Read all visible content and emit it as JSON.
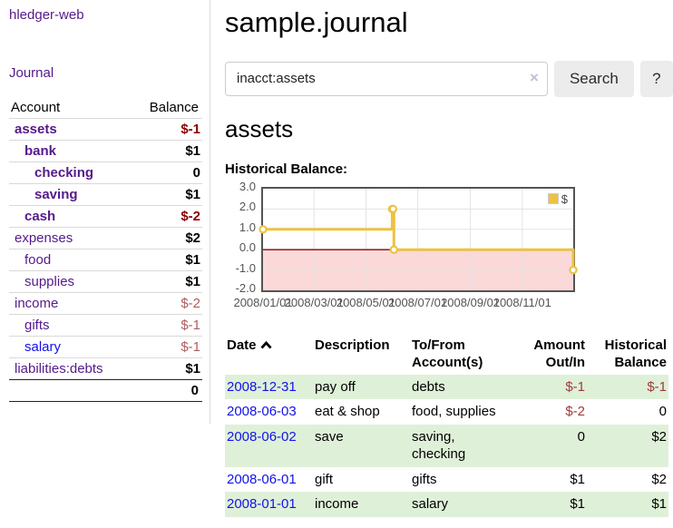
{
  "app": {
    "brand": "hledger-web"
  },
  "nav": {
    "journal": "Journal"
  },
  "sidebar": {
    "headers": {
      "account": "Account",
      "balance": "Balance"
    },
    "accounts": [
      {
        "name": "assets",
        "balance": "$-1"
      },
      {
        "name": "bank",
        "balance": "$1"
      },
      {
        "name": "checking",
        "balance": "0"
      },
      {
        "name": "saving",
        "balance": "$1"
      },
      {
        "name": "cash",
        "balance": "$-2"
      },
      {
        "name": "expenses",
        "balance": "$2"
      },
      {
        "name": "food",
        "balance": "$1"
      },
      {
        "name": "supplies",
        "balance": "$1"
      },
      {
        "name": "income",
        "balance": "$-2"
      },
      {
        "name": "gifts",
        "balance": "$-1"
      },
      {
        "name": "salary",
        "balance": "$-1"
      },
      {
        "name": "liabilities:debts",
        "balance": "$1"
      }
    ],
    "total": "0"
  },
  "main": {
    "title": "sample.journal",
    "account_heading": "assets",
    "chart_title": "Historical Balance:"
  },
  "search": {
    "value": "inacct:assets",
    "clear": "×",
    "submit": "Search",
    "help": "?"
  },
  "chart_data": {
    "type": "line",
    "step": true,
    "series": [
      {
        "name": "$",
        "color": "#edc240",
        "points": [
          [
            "2008-01-01",
            1
          ],
          [
            "2008-06-01",
            2
          ],
          [
            "2008-06-02",
            2
          ],
          [
            "2008-06-03",
            0
          ],
          [
            "2008-12-31",
            -1
          ]
        ]
      }
    ],
    "x_range": [
      "2008-01-01",
      "2008-12-31"
    ],
    "x_ticks": [
      "2008/01/01",
      "2008/03/01",
      "2008/05/01",
      "2008/07/01",
      "2008/09/01",
      "2008/11/01"
    ],
    "y_ticks": [
      3.0,
      2.0,
      1.0,
      0.0,
      -1.0,
      -2.0
    ],
    "ylim": [
      -2,
      3
    ],
    "grid": true,
    "negative_region_color": "#fbd9d9",
    "zero_line_color": "#8b0000",
    "legend": {
      "label": "$",
      "position": "top-right"
    }
  },
  "register": {
    "headers": {
      "date": "Date",
      "description": "Description",
      "accounts": "To/From Account(s)",
      "amount": "Amount Out/In",
      "balance": "Historical Balance"
    },
    "rows": [
      {
        "date": "2008-12-31",
        "description": "pay off",
        "accounts": "debts",
        "amount": "$-1",
        "balance": "$-1"
      },
      {
        "date": "2008-06-03",
        "description": "eat & shop",
        "accounts": "food, supplies",
        "amount": "$-2",
        "balance": "0"
      },
      {
        "date": "2008-06-02",
        "description": "save",
        "accounts": "saving, checking",
        "amount": "0",
        "balance": "$2"
      },
      {
        "date": "2008-06-01",
        "description": "gift",
        "accounts": "gifts",
        "amount": "$1",
        "balance": "$2"
      },
      {
        "date": "2008-01-01",
        "description": "income",
        "accounts": "salary",
        "amount": "$1",
        "balance": "$1"
      }
    ]
  }
}
